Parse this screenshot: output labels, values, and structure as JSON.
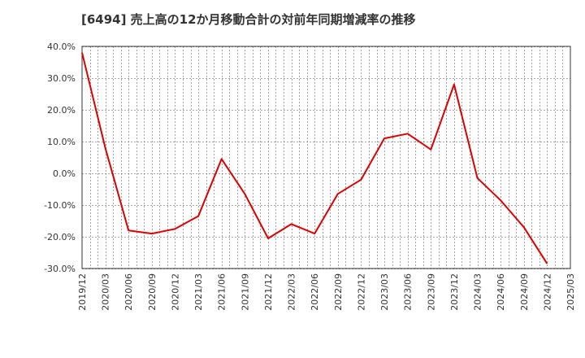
{
  "chart_data": {
    "type": "line",
    "title": "[6494]  売上高の12か月移動合計の対前年同期増減率の推移",
    "xlabel": "",
    "ylabel": "",
    "ylim": [
      -30,
      40
    ],
    "y_ticks": [
      40,
      30,
      20,
      10,
      0,
      -10,
      -20,
      -30
    ],
    "y_tick_labels": [
      "40.0%",
      "30.0%",
      "20.0%",
      "10.0%",
      "0.0%",
      "-10.0%",
      "-20.0%",
      "-30.0%"
    ],
    "x_tick_labels": [
      "2019/12",
      "2020/03",
      "2020/06",
      "2020/09",
      "2020/12",
      "2021/03",
      "2021/06",
      "2021/09",
      "2021/12",
      "2022/03",
      "2022/06",
      "2022/09",
      "2022/12",
      "2023/03",
      "2023/06",
      "2023/09",
      "2023/12",
      "2024/03",
      "2024/06",
      "2024/09",
      "2024/12",
      "2025/03"
    ],
    "grid": true,
    "series": [
      {
        "name": "対前年同期増減率",
        "color": "#dd0000",
        "x": [
          "2019/12",
          "2020/03",
          "2020/06",
          "2020/09",
          "2020/12",
          "2021/03",
          "2021/06",
          "2021/09",
          "2021/12",
          "2022/03",
          "2022/06",
          "2022/09",
          "2022/12",
          "2023/03",
          "2023/06",
          "2023/09",
          "2023/12",
          "2024/03",
          "2024/06",
          "2024/09",
          "2024/12"
        ],
        "values": [
          38.0,
          8.0,
          -18.0,
          -19.0,
          -17.5,
          -13.5,
          4.5,
          -6.5,
          -20.5,
          -16.0,
          -19.0,
          -6.5,
          -2.0,
          11.0,
          12.5,
          7.5,
          28.0,
          -1.5,
          -8.5,
          -17.0,
          -28.5
        ]
      }
    ]
  }
}
